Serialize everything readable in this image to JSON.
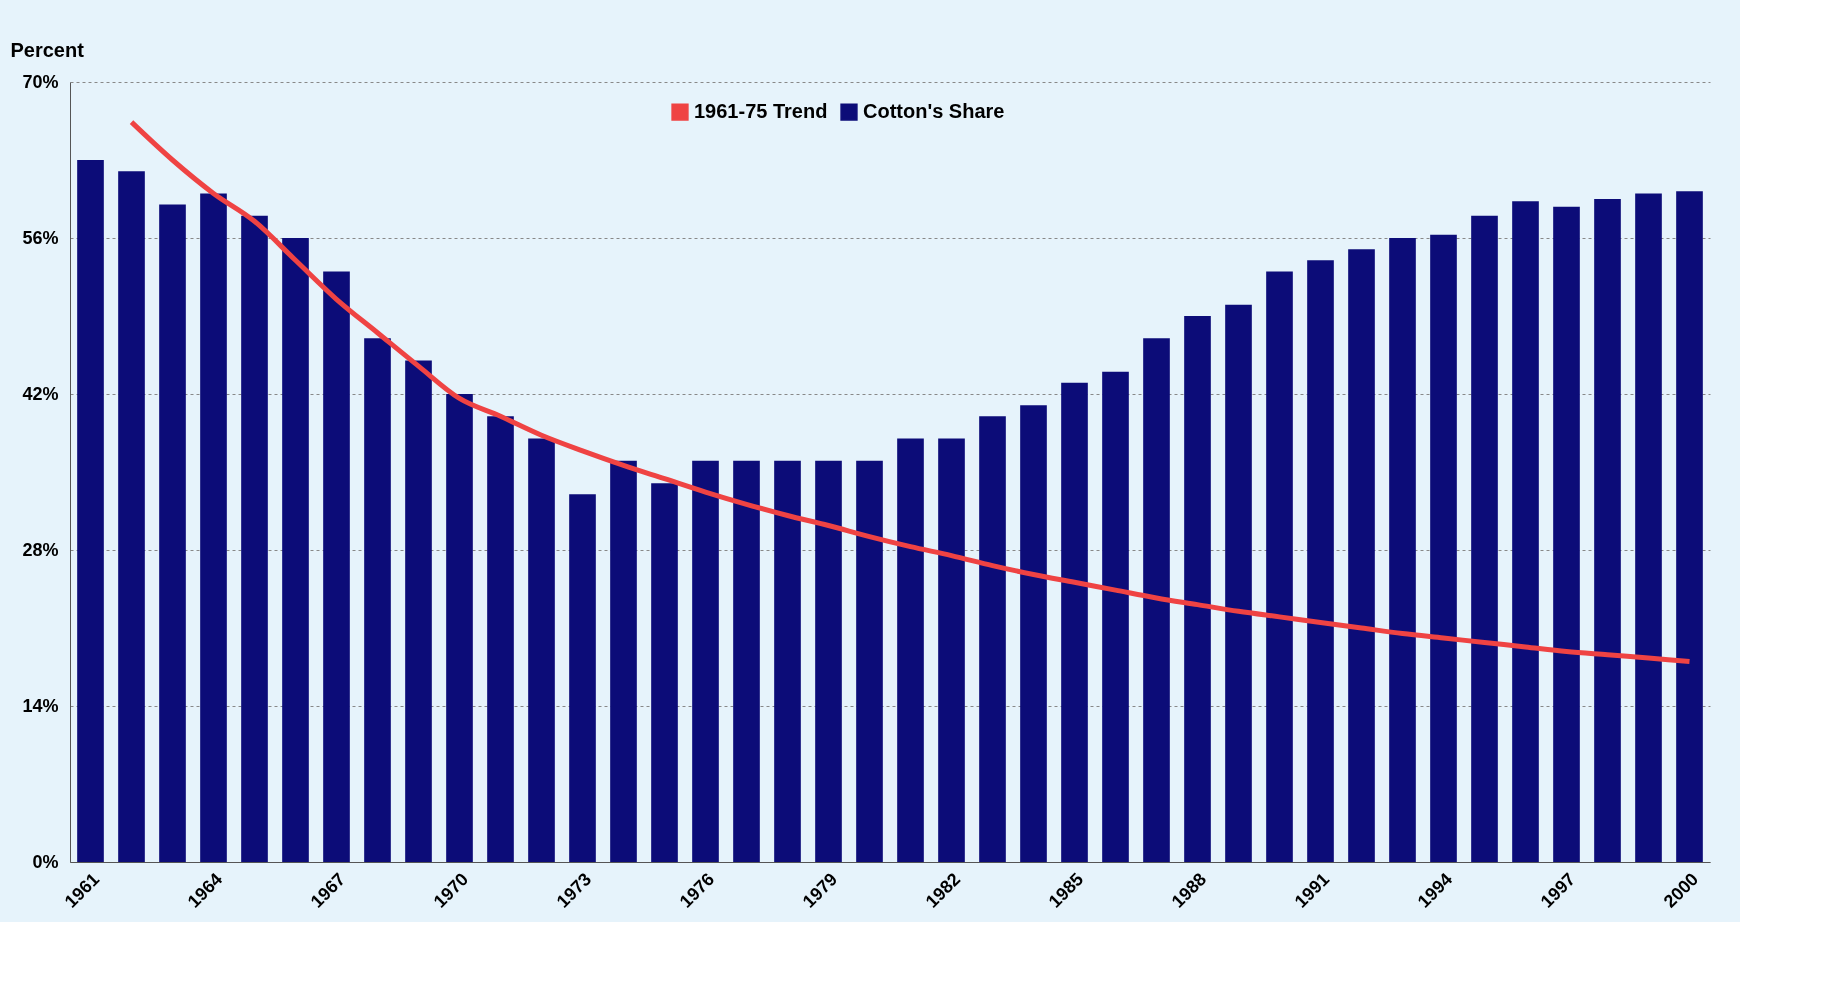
{
  "chart_data": {
    "type": "bar",
    "ylabel": "Percent",
    "categories": [
      "1961",
      null,
      null,
      "1964",
      null,
      null,
      "1967",
      null,
      null,
      "1970",
      null,
      null,
      "1973",
      null,
      null,
      "1976",
      null,
      null,
      "1979",
      null,
      null,
      "1982",
      null,
      null,
      "1985",
      null,
      null,
      "1988",
      null,
      null,
      "1991",
      null,
      null,
      "1994",
      null,
      null,
      "1997",
      null,
      null,
      "2000"
    ],
    "series": [
      {
        "name": "1961-75 Trend",
        "type": "line",
        "color": "#ef4343",
        "values": [
          null,
          66.4,
          63,
          60,
          57.5,
          54,
          50.5,
          47.5,
          44.5,
          41.6,
          40,
          38.3,
          36.9,
          35.6,
          34.4,
          33.2,
          32.1,
          31.1,
          30.2,
          29.2,
          28.3,
          27.5,
          26.6,
          25.8,
          25.1,
          24.4,
          23.7,
          23.1,
          22.5,
          22,
          21.5,
          21,
          20.5,
          20.1,
          19.7,
          19.3,
          18.9,
          18.6,
          18.3,
          18.0
        ]
      },
      {
        "name": "Cotton's Share",
        "color": "#0c0c78",
        "values": [
          63,
          62,
          59,
          60,
          58,
          56,
          53,
          47,
          45,
          42,
          40,
          38,
          33,
          36,
          34,
          36,
          36,
          36,
          36,
          36,
          38,
          38,
          40,
          41,
          43,
          44,
          47,
          49,
          50,
          53,
          54,
          55,
          56,
          56.3,
          58,
          59.3,
          58.8,
          59.5,
          60,
          60.2
        ]
      }
    ],
    "ylim": [
      0,
      70
    ],
    "yticks": [
      {
        "value": 0,
        "label": "0%"
      },
      {
        "value": 14,
        "label": "14%"
      },
      {
        "value": 28,
        "label": "28%"
      },
      {
        "value": 42,
        "label": "42%"
      },
      {
        "value": 56,
        "label": "56%"
      },
      {
        "value": 70,
        "label": "70%"
      }
    ],
    "grid": "y",
    "legend": "top"
  }
}
